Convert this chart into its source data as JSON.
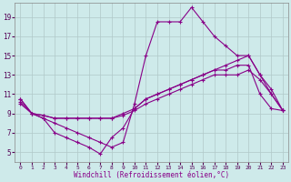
{
  "xlabel": "Windchill (Refroidissement éolien,°C)",
  "xlim": [
    -0.5,
    23.5
  ],
  "ylim": [
    4,
    20.5
  ],
  "xticks": [
    0,
    1,
    2,
    3,
    4,
    5,
    6,
    7,
    8,
    9,
    10,
    11,
    12,
    13,
    14,
    15,
    16,
    17,
    18,
    19,
    20,
    21,
    22,
    23
  ],
  "yticks": [
    5,
    7,
    9,
    11,
    13,
    15,
    17,
    19
  ],
  "bg_color": "#ceeaea",
  "grid_color": "#b0c8c8",
  "line_color": "#880088",
  "lines": [
    {
      "x": [
        0,
        1,
        2,
        3,
        4,
        5,
        6,
        7,
        8,
        9,
        10,
        11,
        12,
        13,
        14,
        15,
        16,
        17,
        18,
        19,
        20,
        21,
        22,
        23
      ],
      "y": [
        10.5,
        9,
        8.5,
        8,
        7.5,
        7,
        6.5,
        6,
        5.5,
        6,
        10,
        15,
        18.5,
        18.5,
        18.5,
        20,
        18.5,
        17,
        16,
        15,
        15,
        13,
        11,
        9.3
      ]
    },
    {
      "x": [
        0,
        1,
        2,
        3,
        4,
        5,
        6,
        7,
        8,
        9,
        10,
        11,
        12,
        13,
        14,
        15,
        16,
        17,
        18,
        19,
        20,
        21,
        22,
        23
      ],
      "y": [
        10.2,
        9,
        8.8,
        8.5,
        8.5,
        8.5,
        8.5,
        8.5,
        8.5,
        9,
        9.5,
        10.5,
        11,
        11.5,
        12,
        12.5,
        13,
        13.5,
        14,
        14.5,
        15,
        13,
        11.5,
        9.3
      ]
    },
    {
      "x": [
        0,
        1,
        2,
        3,
        4,
        5,
        6,
        7,
        8,
        9,
        10,
        11,
        12,
        13,
        14,
        15,
        16,
        17,
        18,
        19,
        20,
        21,
        22,
        23
      ],
      "y": [
        10.0,
        9,
        8.8,
        8.5,
        8.5,
        8.5,
        8.5,
        8.5,
        8.5,
        8.8,
        9.3,
        10,
        10.5,
        11,
        11.5,
        12,
        12.5,
        13,
        13,
        13,
        13.5,
        12.5,
        11,
        9.3
      ]
    },
    {
      "x": [
        0,
        1,
        2,
        3,
        4,
        5,
        6,
        7,
        8,
        9,
        10,
        11,
        12,
        13,
        14,
        15,
        16,
        17,
        18,
        19,
        20,
        21,
        22,
        23
      ],
      "y": [
        10.5,
        9,
        8.5,
        7,
        6.5,
        6,
        5.5,
        4.8,
        6.5,
        7.5,
        9.5,
        10.5,
        11,
        11.5,
        12,
        12.5,
        13,
        13.5,
        13.5,
        14,
        14,
        11,
        9.5,
        9.3
      ]
    }
  ]
}
